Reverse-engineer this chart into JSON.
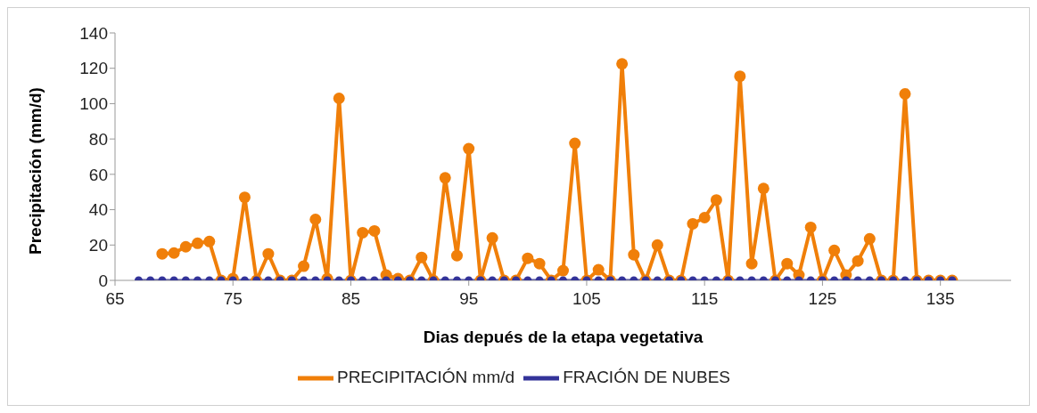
{
  "chart_data": {
    "type": "line",
    "xlabel": "Dias depués de la etapa vegetativa",
    "ylabel": "Precipitación (mm/d)",
    "x": [
      67,
      68,
      69,
      70,
      71,
      72,
      73,
      74,
      75,
      76,
      77,
      78,
      79,
      80,
      81,
      82,
      83,
      84,
      85,
      86,
      87,
      88,
      89,
      90,
      91,
      92,
      93,
      94,
      95,
      96,
      97,
      98,
      99,
      100,
      101,
      102,
      103,
      104,
      105,
      106,
      107,
      108,
      109,
      110,
      111,
      112,
      113,
      114,
      115,
      116,
      117,
      118,
      119,
      120,
      121,
      122,
      123,
      124,
      125,
      126,
      127,
      128,
      129,
      130,
      131,
      132,
      133,
      134,
      135,
      136
    ],
    "series": [
      {
        "name": "PRECIPITACIÓN mm/d",
        "color": "#f07f09",
        "values": [
          null,
          null,
          15,
          15.5,
          19,
          21,
          22,
          0,
          1,
          47,
          0,
          15,
          0,
          0,
          8,
          34.5,
          1,
          103,
          0,
          27,
          28,
          3,
          1,
          0,
          13,
          0,
          58,
          14,
          74.5,
          0,
          24,
          0,
          0,
          12.5,
          9.5,
          0,
          5.5,
          77.5,
          0,
          6,
          0,
          122.5,
          14.5,
          0,
          20,
          0,
          0,
          32,
          35.5,
          45.5,
          0,
          115.5,
          9.5,
          52,
          0,
          9.5,
          3,
          30,
          0,
          17,
          3,
          11,
          23.5,
          0,
          0,
          105.5,
          0,
          0,
          0,
          0
        ]
      },
      {
        "name": "FRACIÓN DE NUBES",
        "color": "#333399",
        "values": [
          0,
          0,
          0,
          0,
          0,
          0,
          0,
          0,
          0,
          0,
          0,
          0,
          0,
          0,
          0,
          0,
          0,
          0,
          0,
          0,
          0,
          0,
          0,
          0,
          0,
          0,
          0,
          0,
          0,
          0,
          0,
          0,
          0,
          0,
          0,
          0,
          0,
          0,
          0,
          0,
          0,
          0,
          0,
          0,
          0,
          0,
          0,
          0,
          0,
          0,
          0,
          0,
          0,
          0,
          0,
          0,
          0,
          0,
          0,
          0,
          0,
          0,
          0,
          0,
          0,
          0,
          0,
          0,
          0,
          0
        ]
      }
    ],
    "xlim": [
      65,
      141
    ],
    "xticks": [
      65,
      75,
      85,
      95,
      105,
      115,
      125,
      135
    ],
    "ylim": [
      0,
      140
    ],
    "yticks": [
      0,
      20,
      40,
      60,
      80,
      100,
      120,
      140
    ],
    "grid": false,
    "legend": "bottom",
    "marker": "circle",
    "line_style": "solid"
  }
}
